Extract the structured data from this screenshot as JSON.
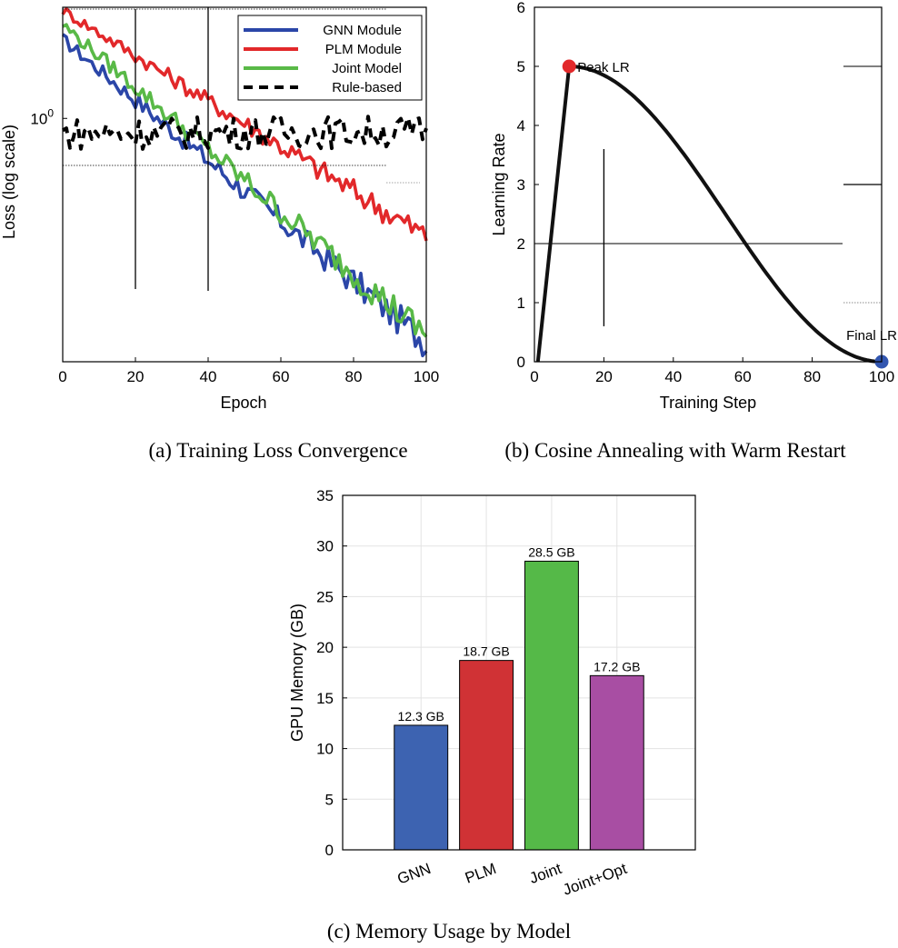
{
  "chart_data": [
    {
      "id": "a",
      "type": "line",
      "caption": "(a) Training Loss Convergence",
      "title": "",
      "xlabel": "Epoch",
      "ylabel": "Loss (log scale)",
      "xlim": [
        0,
        100
      ],
      "ylim": [
        0.26,
        1.85
      ],
      "yscale": "log",
      "xticks": [
        0,
        20,
        40,
        60,
        80,
        100
      ],
      "yticks": [
        {
          "value": 1.0,
          "label": "10",
          "exp": "0"
        }
      ],
      "grid": false,
      "legend": "top-right",
      "series": [
        {
          "name": "GNN Module",
          "color": "#2b46a8",
          "style": "solid",
          "start": 1.55,
          "end": 0.29,
          "noise": 0.035
        },
        {
          "name": "PLM Module",
          "color": "#e2282a",
          "style": "solid",
          "start": 1.82,
          "end": 0.52,
          "noise": 0.03
        },
        {
          "name": "Joint Model",
          "color": "#59b947",
          "style": "solid",
          "start": 1.68,
          "end": 0.3,
          "noise": 0.035
        },
        {
          "name": "Rule-based",
          "color": "#000000",
          "style": "dashed",
          "start": 0.92,
          "end": 0.93,
          "noise": 0.045
        }
      ]
    },
    {
      "id": "b",
      "type": "line",
      "caption": "(b) Cosine Annealing with Warm Restart",
      "title": "",
      "xlabel": "Training Step",
      "ylabel": "Learning Rate",
      "xlim": [
        0,
        100
      ],
      "ylim": [
        0,
        6
      ],
      "xticks": [
        0,
        20,
        40,
        60,
        80,
        100
      ],
      "yticks": [
        0,
        1,
        2,
        3,
        4,
        5,
        6
      ],
      "grid": false,
      "warmup": {
        "x0": 1,
        "y0": 0,
        "peak_x": 10,
        "peak_y": 5
      },
      "decay_end": {
        "x": 100,
        "y": 0
      },
      "annotations": [
        {
          "label": "Peak LR",
          "x": 10,
          "y": 5,
          "color": "#e2282a"
        },
        {
          "label": "Final LR",
          "x": 100,
          "y": 0,
          "color": "#3256b0"
        }
      ]
    },
    {
      "id": "c",
      "type": "bar",
      "caption": "(c) Memory Usage by Model",
      "title": "",
      "xlabel": "",
      "ylabel": "GPU Memory (GB)",
      "ylim": [
        0,
        35
      ],
      "yticks": [
        0,
        5,
        10,
        15,
        20,
        25,
        30,
        35
      ],
      "grid": true,
      "categories": [
        "GNN",
        "PLM",
        "Joint",
        "Joint+Opt"
      ],
      "values": [
        12.3,
        18.7,
        28.5,
        17.2
      ],
      "value_labels": [
        "12.3 GB",
        "18.7 GB",
        "28.5 GB",
        "17.2 GB"
      ],
      "colors": [
        "#3d63b1",
        "#d03235",
        "#55b948",
        "#a84ea3"
      ]
    }
  ]
}
